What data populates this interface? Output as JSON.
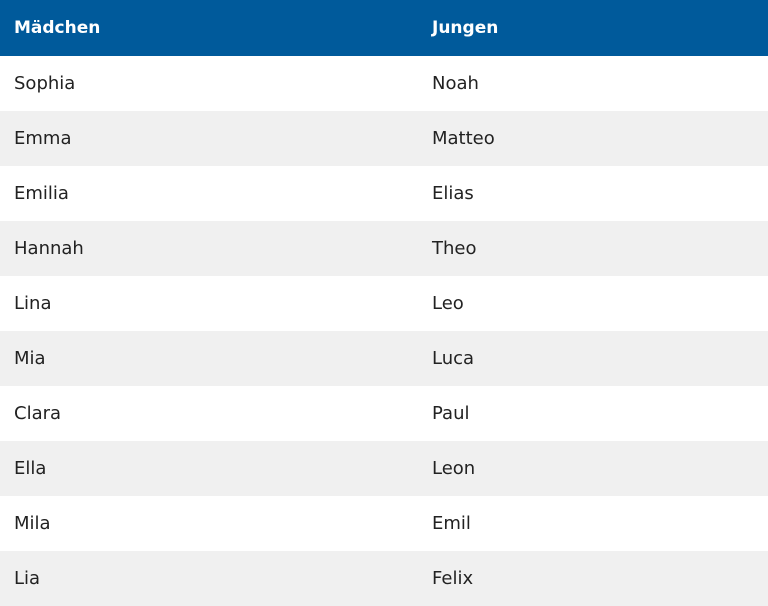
{
  "table": {
    "headers": [
      "Mädchen",
      "Jungen"
    ],
    "rows": [
      [
        "Sophia",
        "Noah"
      ],
      [
        "Emma",
        "Matteo"
      ],
      [
        "Emilia",
        "Elias"
      ],
      [
        "Hannah",
        "Theo"
      ],
      [
        "Lina",
        "Leo"
      ],
      [
        "Mia",
        "Luca"
      ],
      [
        "Clara",
        "Paul"
      ],
      [
        "Ella",
        "Leon"
      ],
      [
        "Mila",
        "Emil"
      ],
      [
        "Lia",
        "Felix"
      ]
    ]
  }
}
